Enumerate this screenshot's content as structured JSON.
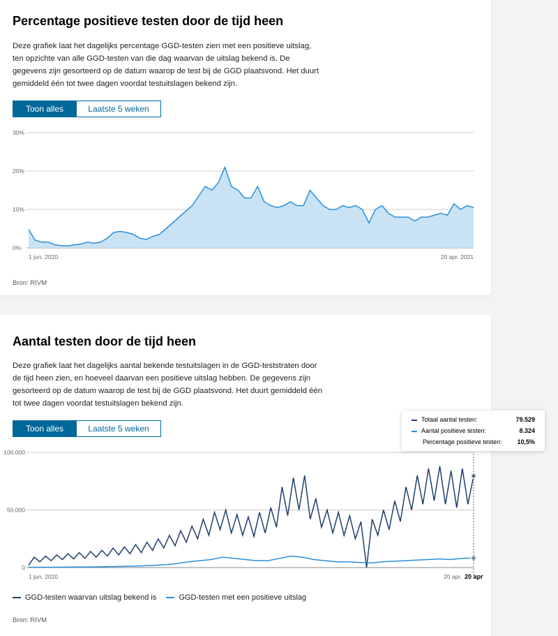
{
  "card1": {
    "title": "Percentage positieve testen door de tijd heen",
    "description": "Deze grafiek laat het dagelijks percentage GGD-testen zien met een positieve uitslag, ten opzichte van alle GGD-testen van die dag waarvan de uitslag bekend is. De gegevens zijn gesorteerd op de datum waarop de test bij de GGD plaatsvond. Het duurt gemiddeld één tot twee dagen voordat testuitslagen bekend zijn.",
    "toggle": {
      "all": "Toon alles",
      "last5": "Laatste 5 weken"
    },
    "source": "Bron: RIVM"
  },
  "card2": {
    "title": "Aantal testen door de tijd heen",
    "description": "Deze grafiek laat het dagelijks aantal bekende testuitslagen in de GGD-teststraten door de tijd heen zien, en hoeveel daarvan een positieve uitslag hebben. De gegevens zijn gesorteerd op de datum waarop de test bij de GGD plaatsvond. Het duurt gemiddeld één tot twee dagen voordat testuitslagen bekend zijn.",
    "toggle": {
      "all": "Toon alles",
      "last5": "Laatste 5 weken"
    },
    "source": "Bron: RIVM",
    "tooltip": {
      "total_label": "Totaal aantal testen:",
      "total_value": "79.529",
      "pos_label": "Aantal positieve testen:",
      "pos_value": "8.324",
      "pct_label": "Percentage positieve testen:",
      "pct_value": "10,5%",
      "date": "20 apr"
    }
  },
  "colors": {
    "accent": "#01689b",
    "dark_series": "#1f3e6e",
    "light_series": "#2a8fd9",
    "area": "#c9e3f4"
  },
  "chart_data": [
    {
      "type": "area",
      "title": "Percentage positieve testen door de tijd heen",
      "x_start": "1 jun. 2020",
      "x_end": "20 apr. 2021",
      "y_ticks": [
        "0%",
        "10%",
        "20%",
        "30%"
      ],
      "ylim": [
        0,
        30
      ],
      "values": [
        4.8,
        2,
        1.5,
        1.5,
        0.8,
        0.6,
        0.5,
        0.8,
        1,
        1.5,
        1.2,
        1.5,
        2.5,
        4,
        4.3,
        4,
        3.5,
        2.5,
        2.2,
        3,
        3.5,
        5,
        6.5,
        8,
        9.5,
        11,
        13.5,
        16,
        15,
        17,
        21,
        16,
        15,
        13,
        13,
        16,
        12,
        11,
        10.5,
        11,
        12,
        11,
        11,
        15,
        13,
        11,
        10,
        10,
        11,
        10.5,
        11,
        10,
        6.5,
        10,
        11,
        9,
        8,
        8,
        8,
        7,
        8,
        8,
        8.5,
        9,
        8.5,
        11.5,
        10,
        11,
        10.5
      ]
    },
    {
      "type": "line",
      "title": "Aantal testen door de tijd heen",
      "x_start": "1 jun. 2020",
      "x_end": "20 apr.",
      "y_ticks": [
        "0",
        "50.000",
        "100.000"
      ],
      "ylim": [
        0,
        100000
      ],
      "legend": [
        "GGD-testen waarvan uitslag bekend is",
        "GGD-testen met een positieve uitslag"
      ],
      "series": [
        {
          "name": "GGD-testen waarvan uitslag bekend is",
          "values": [
            2000,
            9000,
            5000,
            10000,
            6000,
            11000,
            7000,
            12000,
            7500,
            13000,
            8000,
            14000,
            9000,
            15000,
            10000,
            17000,
            11000,
            18000,
            12000,
            20000,
            13000,
            22000,
            15000,
            25000,
            17000,
            28000,
            19000,
            32000,
            22000,
            36000,
            25000,
            42000,
            28000,
            48000,
            33000,
            50000,
            30000,
            46000,
            28000,
            44000,
            27000,
            48000,
            30000,
            52000,
            35000,
            70000,
            45000,
            78000,
            50000,
            80000,
            42000,
            60000,
            35000,
            50000,
            30000,
            48000,
            28000,
            45000,
            25000,
            40000,
            0,
            42000,
            28000,
            50000,
            33000,
            58000,
            40000,
            70000,
            50000,
            80000,
            55000,
            86000,
            58000,
            88000,
            55000,
            84000,
            52000,
            86000,
            55000,
            79529
          ]
        },
        {
          "name": "GGD-testen met een positieve uitslag",
          "values": [
            300,
            300,
            300,
            400,
            500,
            500,
            600,
            800,
            1000,
            1200,
            1500,
            2000,
            2500,
            3500,
            5000,
            6000,
            7000,
            9000,
            8000,
            7000,
            6000,
            6000,
            8000,
            10000,
            9000,
            7000,
            6000,
            5000,
            5000,
            4500,
            4000,
            5000,
            5500,
            6000,
            6500,
            7000,
            7500,
            7000,
            8000,
            8324
          ]
        }
      ]
    }
  ]
}
